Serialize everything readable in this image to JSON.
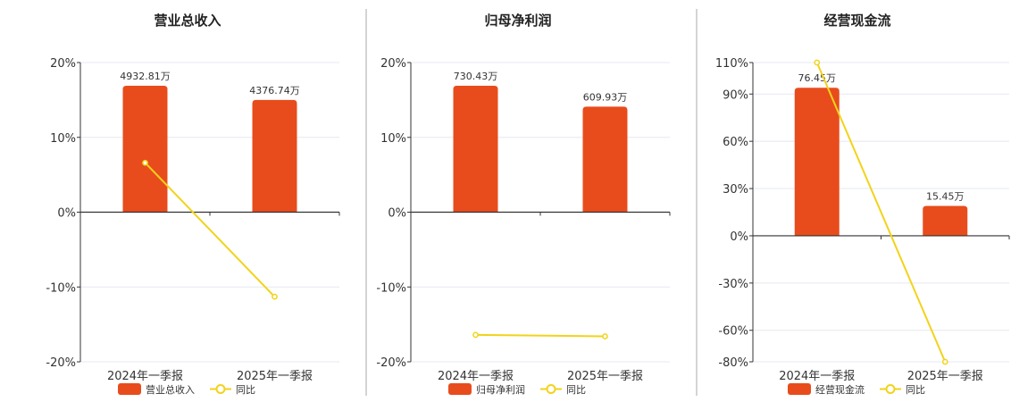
{
  "colors": {
    "bar": "#E84C1C",
    "line": "#F2D31B",
    "grid": "#E6E8F0",
    "axis": "#333333",
    "divider": "#AAAAAA"
  },
  "chart_data": [
    {
      "type": "bar",
      "title": "营业总收入",
      "categories": [
        "2024年一季报",
        "2025年一季报"
      ],
      "series": [
        {
          "name": "营业总收入",
          "type": "bar",
          "values": [
            16.9,
            15.0
          ],
          "labels": [
            "4932.81万",
            "4376.74万"
          ]
        },
        {
          "name": "同比",
          "type": "line",
          "values": [
            6.6,
            -11.3
          ]
        }
      ],
      "yticks": [
        "20%",
        "10%",
        "0%",
        "-10%",
        "-20%"
      ],
      "ylim": [
        -20,
        20
      ]
    },
    {
      "type": "bar",
      "title": "归母净利润",
      "categories": [
        "2024年一季报",
        "2025年一季报"
      ],
      "series": [
        {
          "name": "归母净利润",
          "type": "bar",
          "values": [
            16.9,
            14.1
          ],
          "labels": [
            "730.43万",
            "609.93万"
          ]
        },
        {
          "name": "同比",
          "type": "line",
          "values": [
            -16.4,
            -16.6
          ]
        }
      ],
      "yticks": [
        "20%",
        "10%",
        "0%",
        "-10%",
        "-20%"
      ],
      "ylim": [
        -20,
        20
      ]
    },
    {
      "type": "bar",
      "title": "经营现金流",
      "categories": [
        "2024年一季报",
        "2025年一季报"
      ],
      "series": [
        {
          "name": "经营现金流",
          "type": "bar",
          "values": [
            94,
            19
          ],
          "labels": [
            "76.45万",
            "15.45万"
          ]
        },
        {
          "name": "同比",
          "type": "line",
          "values": [
            110,
            -80
          ]
        }
      ],
      "yticks": [
        "110%",
        "90%",
        "60%",
        "30%",
        "0%",
        "-30%",
        "-60%",
        "-80%"
      ],
      "ylim": [
        -80,
        110
      ]
    }
  ]
}
